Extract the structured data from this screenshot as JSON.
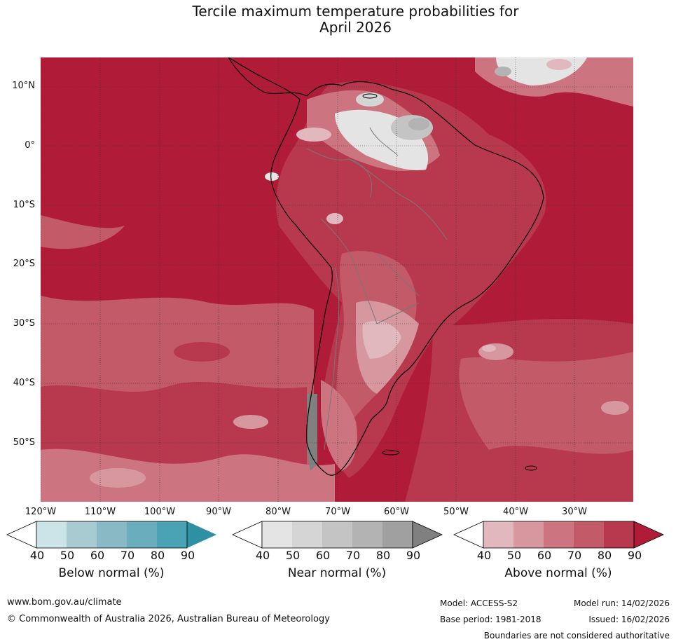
{
  "title_line1": "Tercile maximum temperature probabilities for",
  "title_line2": "April 2026",
  "lat_labels": [
    "10°N",
    "0°",
    "10°S",
    "20°S",
    "30°S",
    "40°S",
    "50°S"
  ],
  "lon_labels": [
    "120°W",
    "110°W",
    "100°W",
    "90°W",
    "80°W",
    "70°W",
    "60°W",
    "50°W",
    "40°W",
    "30°W"
  ],
  "colorbars": [
    {
      "title": "Below normal (%)",
      "ticks": [
        "40",
        "50",
        "60",
        "70",
        "80",
        "90"
      ],
      "colors": [
        "#ffffff",
        "#cce3e8",
        "#a8cbd2",
        "#89b9c4",
        "#6aaebd",
        "#4aa3b4",
        "#2f8fa3"
      ]
    },
    {
      "title": "Near normal (%)",
      "ticks": [
        "40",
        "50",
        "60",
        "70",
        "80",
        "90"
      ],
      "colors": [
        "#ffffff",
        "#e4e4e4",
        "#d5d5d5",
        "#c4c4c4",
        "#b3b3b3",
        "#a0a0a0",
        "#808080"
      ]
    },
    {
      "title": "Above normal (%)",
      "ticks": [
        "40",
        "50",
        "60",
        "70",
        "80",
        "90"
      ],
      "colors": [
        "#ffffff",
        "#e0b8bd",
        "#d6979f",
        "#cc7581",
        "#c25a68",
        "#b8384d",
        "#b01c38"
      ]
    }
  ],
  "footer": {
    "website": "www.bom.gov.au/climate",
    "copyright": "© Commonwealth of Australia 2026, Australian Bureau of Meteorology",
    "model": "Model: ACCESS-S2",
    "base_period": "Base period: 1981-2018",
    "model_run": "Model run: 14/02/2026",
    "issued": "Issued: 16/02/2026",
    "disclaimer": "Boundaries are not considered authoritative"
  }
}
